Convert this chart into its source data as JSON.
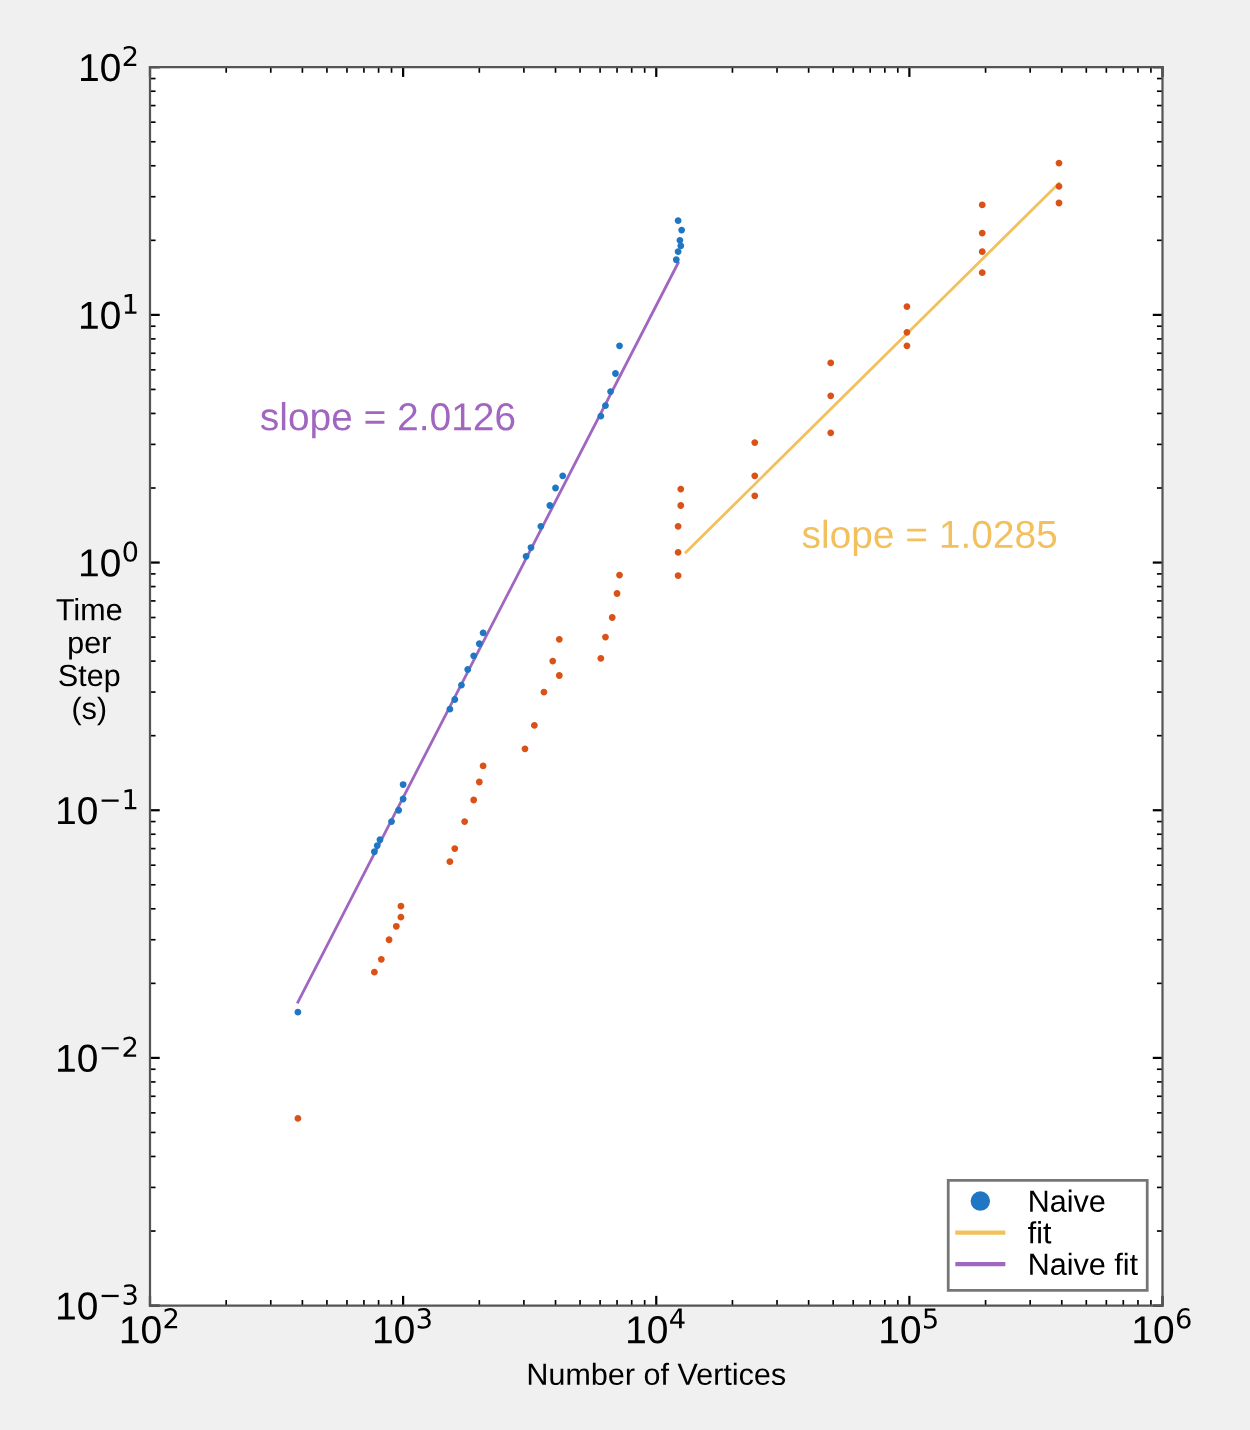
{
  "chart_data": {
    "type": "scatter",
    "xlabel": "Number of Vertices",
    "ylabel": "Time\nper\nStep\n(s)",
    "log": "xy",
    "xlim": [
      100,
      1000000
    ],
    "ylim": [
      0.001,
      100
    ],
    "xticks": [
      {
        "value": 100,
        "label": "10$^{2}$"
      },
      {
        "value": 1000,
        "label": "10$^{3}$"
      },
      {
        "value": 10000,
        "label": "10$^{4}$"
      },
      {
        "value": 100000,
        "label": "10$^{5}$"
      },
      {
        "value": 1000000,
        "label": "10$^{6}$"
      }
    ],
    "yticks": [
      {
        "value": 0.001,
        "label": "10$^{−3}$"
      },
      {
        "value": 0.01,
        "label": "10$^{−2}$"
      },
      {
        "value": 0.1,
        "label": "10$^{−1}$"
      },
      {
        "value": 1,
        "label": "10$^{0}$"
      },
      {
        "value": 10,
        "label": "10$^{1}$"
      },
      {
        "value": 100,
        "label": "10$^{2}$"
      }
    ],
    "grid": false,
    "legend": "bottom right",
    "series": [
      {
        "name": "Naive",
        "marker": "circle",
        "color": "#1f77c4",
        "x": [
          384,
          770,
          790,
          810,
          900,
          960,
          1000,
          1000,
          1530,
          1600,
          1700,
          1800,
          1900,
          2000,
          2070,
          3060,
          3200,
          3500,
          3800,
          4000,
          4270,
          6040,
          6300,
          6600,
          6900,
          7160,
          12000,
          12200,
          12400,
          12600,
          12200,
          12500
        ],
        "values": [
          0.0153,
          0.068,
          0.072,
          0.076,
          0.09,
          0.1,
          0.111,
          0.127,
          0.256,
          0.28,
          0.32,
          0.37,
          0.42,
          0.47,
          0.52,
          1.06,
          1.15,
          1.4,
          1.7,
          2.0,
          2.24,
          3.9,
          4.3,
          4.9,
          5.8,
          7.5,
          16.7,
          18,
          20,
          22,
          24,
          19
        ]
      },
      {
        "marker": "circle",
        "color": "#d95319",
        "x": [
          384,
          770,
          820,
          880,
          940,
          980,
          980,
          1530,
          1600,
          1750,
          1900,
          2000,
          2070,
          3030,
          3300,
          3600,
          3900,
          4140,
          4140,
          6040,
          6300,
          6700,
          7000,
          7160,
          12200,
          12200,
          12200,
          12500,
          12500,
          24500,
          24500,
          24500,
          48900,
          48900,
          48900,
          97800,
          97800,
          97800,
          194000,
          194000,
          194000,
          194000,
          390000,
          390000,
          390000
        ],
        "values": [
          0.0057,
          0.0222,
          0.025,
          0.03,
          0.034,
          0.037,
          0.041,
          0.062,
          0.07,
          0.09,
          0.11,
          0.13,
          0.151,
          0.177,
          0.22,
          0.3,
          0.4,
          0.49,
          0.35,
          0.41,
          0.5,
          0.6,
          0.75,
          0.89,
          0.885,
          1.1,
          1.4,
          1.7,
          1.98,
          1.86,
          2.24,
          3.05,
          3.34,
          4.71,
          6.4,
          7.5,
          8.5,
          10.8,
          14.8,
          18,
          21.4,
          27.8,
          28.3,
          33,
          41
        ]
      },
      {
        "name": "fit",
        "type": "line",
        "marker": "none",
        "color": "#f2c05c",
        "x": [
          13100,
          390000
        ],
        "values": [
          1.1,
          34
        ]
      },
      {
        "name": "Naive fit",
        "type": "line",
        "marker": "none",
        "color": "#a066c0",
        "x": [
          384,
          12200
        ],
        "values": [
          0.0168,
          16.2
        ]
      }
    ],
    "line_style": "solid",
    "annotations": [
      "slope = 2.0126",
      "slope = 1.0285"
    ]
  }
}
